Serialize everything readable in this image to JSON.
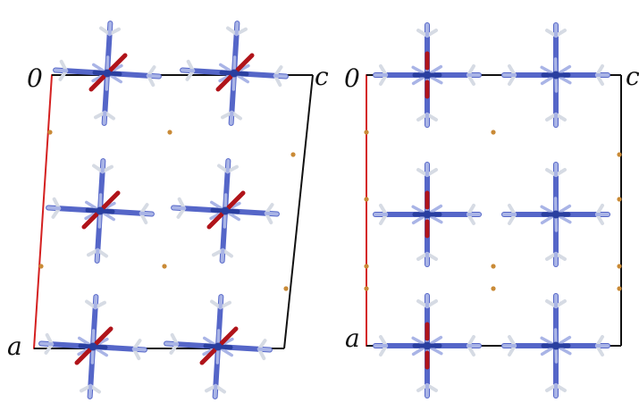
{
  "panels": [
    {
      "id": "left-panel",
      "labels": {
        "origin": "0",
        "a": "a",
        "c": "c"
      },
      "cell_shape": "oblique",
      "molecule_tilt": "tilted"
    },
    {
      "id": "right-panel",
      "labels": {
        "origin": "0",
        "a": "a",
        "c": "c"
      },
      "cell_shape": "rectangular",
      "molecule_tilt": "upright"
    }
  ],
  "colors": {
    "a_axis": "#d42020",
    "cell_edge": "#111111",
    "nitrogen": "#2a3fa0",
    "bond_blue": "#5566c8",
    "methyl": "#a9b4e6",
    "hydrogen": "#d6dbe4",
    "oxygen": "#b0141a",
    "ion": "#c98a36"
  }
}
